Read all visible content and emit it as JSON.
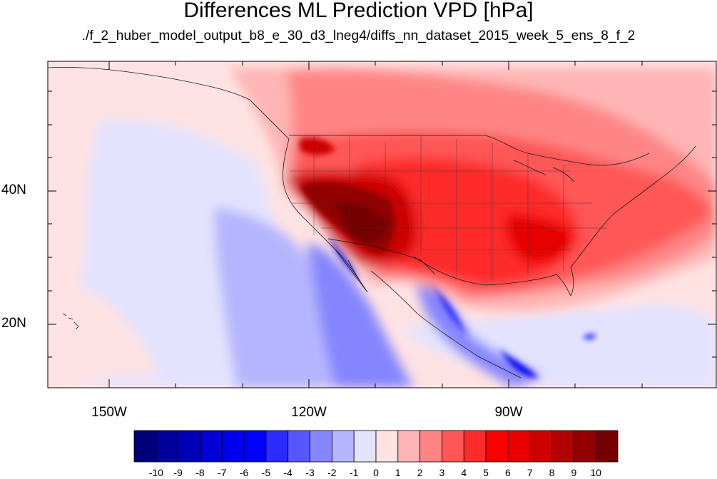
{
  "title": "Differences ML Prediction VPD [hPa]",
  "subtitle": "./f_2_huber_model_output_b8_e_30_d3_lneg4/diffs_nn_dataset_2015_week_5_ens_8_f_2",
  "lat_labels": [
    "40N",
    "20N"
  ],
  "lon_labels": [
    "150W",
    "120W",
    "90W"
  ],
  "colorbar": {
    "labels": [
      "-10",
      "-9",
      "-8",
      "-7",
      "-6",
      "-5",
      "-4",
      "-3",
      "-2",
      "-1",
      "0",
      "1",
      "2",
      "3",
      "4",
      "5",
      "6",
      "7",
      "8",
      "9",
      "10"
    ],
    "colors": [
      "#00007a",
      "#00009a",
      "#0000b8",
      "#0000d6",
      "#0000ef",
      "#0000ff",
      "#2b2bff",
      "#5656ff",
      "#8585ff",
      "#b5b5ff",
      "#e3e3ff",
      "#ffe3e3",
      "#ffb5b5",
      "#ff8585",
      "#ff5656",
      "#ff2b2b",
      "#ff0000",
      "#e60000",
      "#cc0000",
      "#b00000",
      "#920000",
      "#750000"
    ]
  }
}
